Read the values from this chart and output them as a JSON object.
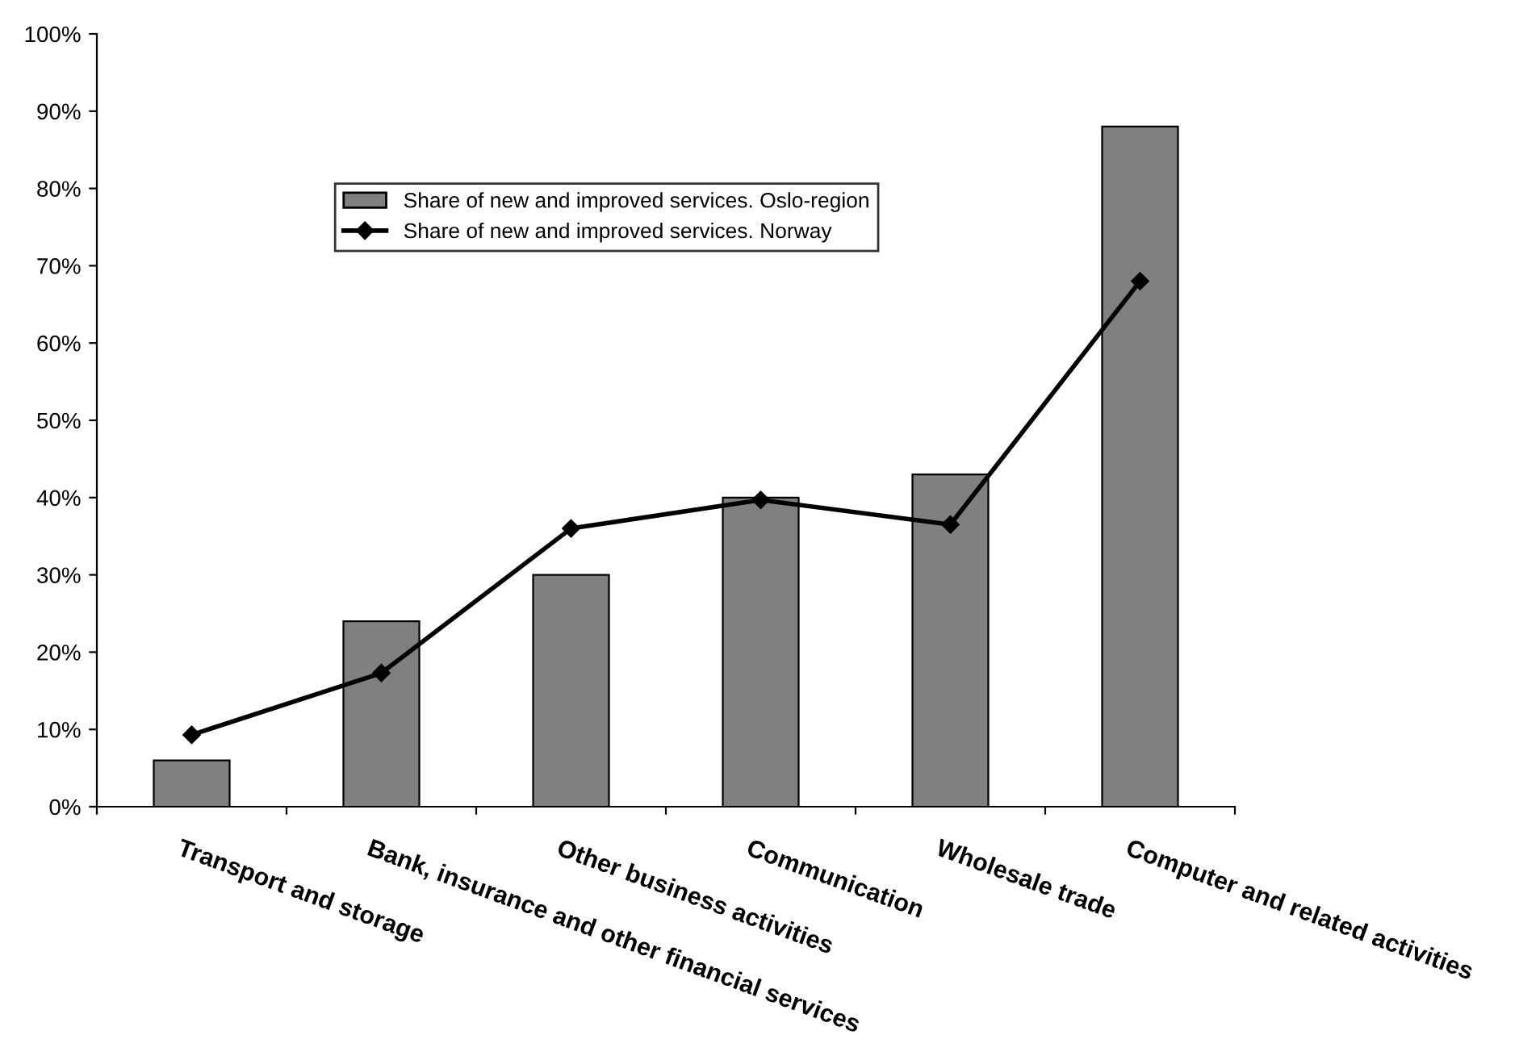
{
  "chart_data": {
    "type": "bar",
    "categories": [
      "Transport and storage",
      "Bank, insurance and other financial services",
      "Other business activities",
      "Communication",
      "Wholesale trade",
      "Computer and related activities"
    ],
    "series": [
      {
        "name": "Share of new and improved services. Oslo-region",
        "color": "#808080",
        "values": [
          6,
          24,
          30,
          40,
          43,
          88
        ]
      },
      {
        "name": "Share of new and improved services. Norway",
        "type": "line",
        "color": "#000000",
        "values": [
          9.3,
          17.3,
          36,
          39.7,
          36.5,
          68
        ]
      }
    ],
    "ylim": [
      0,
      100
    ],
    "yticks": [
      {
        "value": 0,
        "label": "0%"
      },
      {
        "value": 10,
        "label": "10%"
      },
      {
        "value": 20,
        "label": "20%"
      },
      {
        "value": 30,
        "label": "30%"
      },
      {
        "value": 40,
        "label": "40%"
      },
      {
        "value": 50,
        "label": "50%"
      },
      {
        "value": 60,
        "label": "60%"
      },
      {
        "value": 70,
        "label": "70%"
      },
      {
        "value": 80,
        "label": "80%"
      },
      {
        "value": 90,
        "label": "90%"
      },
      {
        "value": 100,
        "label": "100%"
      }
    ],
    "grid": false,
    "marker": "diamond",
    "legend": "top left"
  }
}
